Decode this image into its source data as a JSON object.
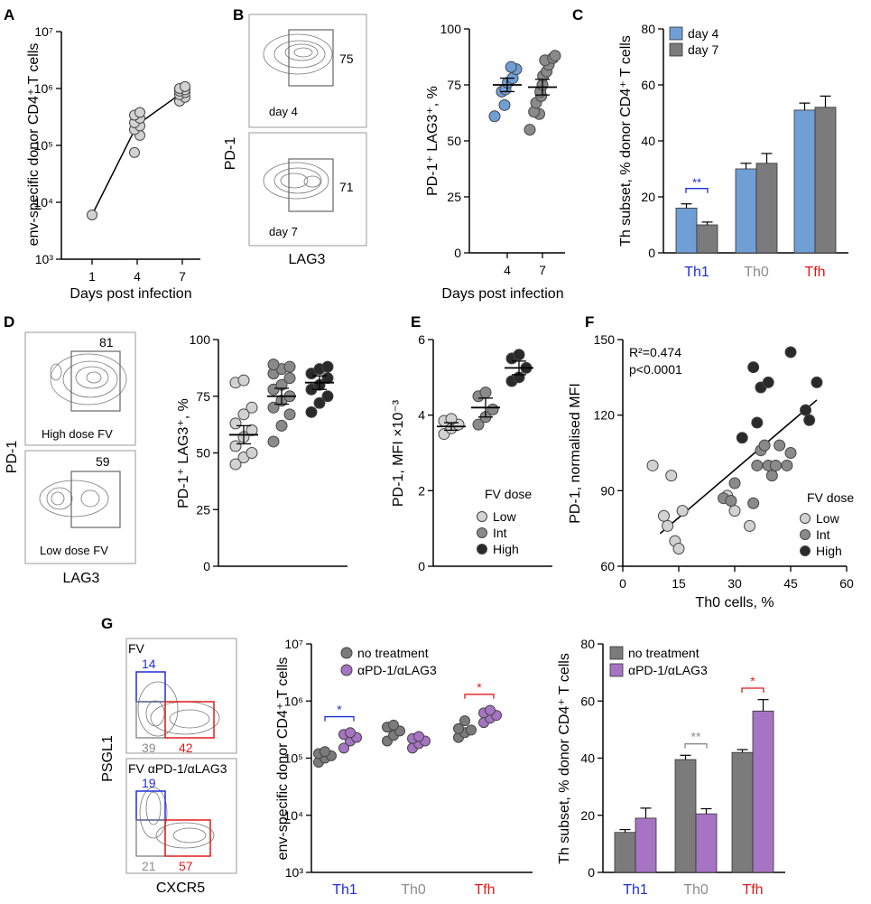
{
  "panels": {
    "A": "A",
    "B": "B",
    "C": "C",
    "D": "D",
    "E": "E",
    "F": "F",
    "G": "G"
  },
  "colors": {
    "blue": "#6f9fd5",
    "grey": "#7b7b7b",
    "purple": "#a774c4",
    "light": "#d2d2d2",
    "mid": "#8a8a8a",
    "dark": "#2a2a2a",
    "th1": "#1f2fd8",
    "th0": "#8c8c8c",
    "tfh": "#e21a1a"
  },
  "flow": {
    "pd1": "PD-1",
    "lag3": "LAG3",
    "psgl1": "PSGL1",
    "cxcr5": "CXCR5",
    "b_day4": "day 4",
    "b_day4_val": "75",
    "b_day7": "day 7",
    "b_day7_val": "71",
    "d_high": "High dose FV",
    "d_high_val": "81",
    "d_low": "Low dose FV",
    "d_low_val": "59",
    "g_top_label": "FV",
    "g_top_th1": "14",
    "g_top_th0": "39",
    "g_top_tfh": "42",
    "g_bot_label": "FV αPD-1/αLAG3",
    "g_bot_th1": "19",
    "g_bot_th0": "21",
    "g_bot_tfh": "57"
  },
  "chart_data": [
    {
      "id": "A",
      "type": "line",
      "title": "",
      "xlabel": "Days post infection",
      "ylabel": "env-specific  donor CD4⁺ T cells",
      "yscale": "log",
      "ylim": [
        1000,
        10000000
      ],
      "yticks": [
        "10³",
        "10⁴",
        "10⁵",
        "10⁶",
        "10⁷"
      ],
      "categories": [
        "1",
        "4",
        "7"
      ],
      "mean": [
        6000,
        230000,
        850000
      ],
      "points": [
        [
          6000
        ],
        [
          75000,
          150000,
          190000,
          220000,
          250000,
          300000,
          340000,
          380000
        ],
        [
          600000,
          700000,
          780000,
          850000,
          900000,
          950000,
          1000000,
          1080000
        ]
      ]
    },
    {
      "id": "B",
      "type": "scatter",
      "xlabel": "Days post infection",
      "ylabel": "PD-1⁺ LAG3⁺, %",
      "ylim": [
        0,
        100
      ],
      "yticks": [
        "0",
        "25",
        "50",
        "75",
        "100"
      ],
      "categories": [
        "4",
        "7"
      ],
      "mean": [
        75,
        74
      ],
      "sem": [
        3,
        3.5
      ],
      "points": [
        [
          61,
          66,
          72,
          73,
          76,
          78,
          82,
          83
        ],
        [
          55,
          62,
          63,
          67,
          70,
          72,
          75,
          79,
          81,
          84,
          86,
          87,
          88
        ]
      ]
    },
    {
      "id": "C",
      "type": "bar",
      "ylabel": "Th subset, % donor CD4⁺ T cells",
      "ylim": [
        0,
        80
      ],
      "yticks": [
        "0",
        "20",
        "40",
        "60",
        "80"
      ],
      "categories": [
        "Th1",
        "Th0",
        "Tfh"
      ],
      "series": [
        {
          "name": "day 4",
          "values": [
            16,
            30,
            51
          ],
          "err": [
            1.5,
            2,
            2.5
          ]
        },
        {
          "name": "day 7",
          "values": [
            10,
            32,
            52
          ],
          "err": [
            1,
            3.5,
            4
          ]
        }
      ],
      "sig": [
        "**"
      ]
    },
    {
      "id": "D",
      "type": "scatter",
      "ylabel": "PD-1⁺ LAG3⁺, %",
      "ylim": [
        0,
        100
      ],
      "yticks": [
        "0",
        "25",
        "50",
        "75",
        "100"
      ],
      "mean": [
        58,
        75,
        81
      ],
      "sem": [
        4,
        3.5,
        3
      ],
      "points": [
        [
          45,
          48,
          50,
          53,
          57,
          60,
          63,
          67,
          70,
          81,
          82
        ],
        [
          55,
          62,
          67,
          70,
          73,
          75,
          78,
          80,
          83,
          85,
          87,
          88,
          89
        ],
        [
          68,
          72,
          75,
          78,
          80,
          83,
          85,
          87,
          88
        ]
      ]
    },
    {
      "id": "E",
      "type": "scatter",
      "ylabel": "PD-1, MFI ×10⁻³",
      "ylim": [
        0,
        6
      ],
      "yticks": [
        "0",
        "2",
        "4",
        "6"
      ],
      "legend_title": "FV dose",
      "legend": [
        "Low",
        "Int",
        "High"
      ],
      "mean": [
        3.7,
        4.2,
        5.25
      ],
      "sem": [
        0.1,
        0.25,
        0.18
      ],
      "points": [
        [
          3.5,
          3.65,
          3.75,
          3.85,
          3.9
        ],
        [
          3.75,
          3.95,
          4.15,
          4.5,
          4.6
        ],
        [
          4.9,
          5.0,
          5.25,
          5.5,
          5.6
        ]
      ]
    },
    {
      "id": "F",
      "type": "scatter",
      "xlabel": "Th0 cells, %",
      "ylabel": "PD-1, normalised MFI",
      "xlim": [
        0,
        60
      ],
      "ylim": [
        60,
        150
      ],
      "xticks": [
        "0",
        "15",
        "30",
        "45",
        "60"
      ],
      "yticks": [
        "60",
        "90",
        "120",
        "150"
      ],
      "annotation_r2": "R²=0.474",
      "annotation_p": "p<0.0001",
      "legend_title": "FV dose",
      "legend": [
        "Low",
        "Int",
        "High"
      ],
      "regression": [
        [
          10,
          73
        ],
        [
          52,
          126
        ]
      ],
      "low": [
        [
          8,
          100
        ],
        [
          11,
          80
        ],
        [
          12,
          76
        ],
        [
          13,
          96
        ],
        [
          14,
          70
        ],
        [
          15,
          67
        ],
        [
          16,
          82
        ],
        [
          28,
          88
        ],
        [
          30,
          82
        ],
        [
          34,
          76
        ]
      ],
      "int": [
        [
          27,
          87
        ],
        [
          29,
          86
        ],
        [
          30,
          93
        ],
        [
          35,
          85
        ],
        [
          36,
          100
        ],
        [
          37,
          106
        ],
        [
          38,
          108
        ],
        [
          39,
          100
        ],
        [
          40,
          96
        ],
        [
          41,
          100
        ],
        [
          42,
          108
        ],
        [
          44,
          100
        ],
        [
          45,
          105
        ]
      ],
      "high": [
        [
          32,
          111
        ],
        [
          35,
          139
        ],
        [
          36,
          117
        ],
        [
          37,
          131
        ],
        [
          39,
          133
        ],
        [
          45,
          145
        ],
        [
          49,
          122
        ],
        [
          50,
          118
        ],
        [
          52,
          133
        ]
      ]
    },
    {
      "id": "G2",
      "type": "scatter",
      "ylabel": "env-specific  donor CD4⁺ T cells",
      "yscale": "log",
      "ylim": [
        1000,
        10000000
      ],
      "yticks": [
        "10³",
        "10⁴",
        "10⁵",
        "10⁶",
        "10⁷"
      ],
      "categories": [
        "Th1",
        "Th0",
        "Tfh"
      ],
      "legend": [
        "no treatment",
        "αPD-1/αLAG3"
      ],
      "no_treatment": [
        [
          85000,
          100000,
          110000,
          120000,
          130000
        ],
        [
          200000,
          250000,
          300000,
          350000,
          380000
        ],
        [
          230000,
          280000,
          310000,
          330000,
          450000
        ]
      ],
      "treated": [
        [
          150000,
          200000,
          230000,
          260000,
          280000
        ],
        [
          150000,
          180000,
          200000,
          220000,
          240000
        ],
        [
          420000,
          500000,
          560000,
          620000,
          690000
        ]
      ],
      "sig": [
        "*",
        "",
        "*"
      ]
    },
    {
      "id": "G3",
      "type": "bar",
      "ylabel": "Th subset, % donor CD4⁺ T cells",
      "ylim": [
        0,
        80
      ],
      "yticks": [
        "0",
        "20",
        "40",
        "60",
        "80"
      ],
      "categories": [
        "Th1",
        "Th0",
        "Tfh"
      ],
      "series": [
        {
          "name": "no treatment",
          "values": [
            14,
            39.5,
            42
          ],
          "err": [
            1,
            1.5,
            1
          ]
        },
        {
          "name": "αPD-1/αLAG3",
          "values": [
            19,
            20.5,
            56.5
          ],
          "err": [
            3.5,
            1.8,
            4
          ]
        }
      ],
      "sig": [
        "",
        "**",
        "*"
      ]
    }
  ]
}
